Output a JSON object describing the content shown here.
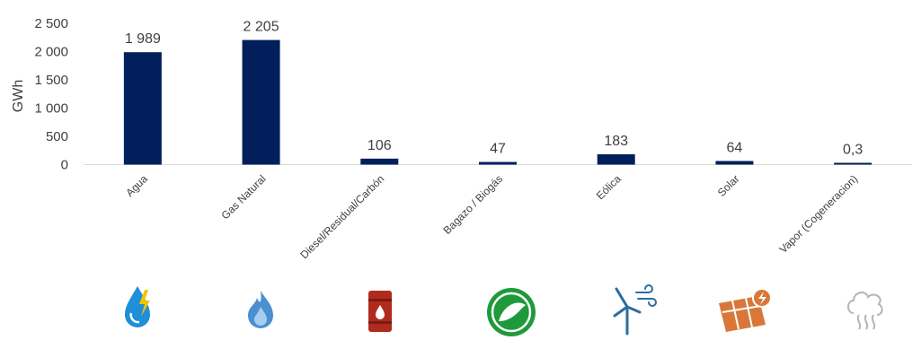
{
  "chart_data": {
    "type": "bar",
    "ylabel": "GWh",
    "ylim": [
      0,
      2500
    ],
    "yticks": [
      0,
      500,
      1000,
      1500,
      2000,
      2500
    ],
    "ytick_labels": [
      "0",
      "500",
      "1 000",
      "1 500",
      "2 000",
      "2 500"
    ],
    "categories": [
      "Agua",
      "Gas Natural",
      "Diesel/Residual/Carbón",
      "Bagazo / Biogás",
      "Eólica",
      "Solar",
      "Vapor (Cogeneracion)"
    ],
    "values": [
      1989,
      2205,
      106,
      47,
      183,
      64,
      0.3
    ],
    "data_labels": [
      "1 989",
      "2 205",
      "106",
      "47",
      "183",
      "64",
      "0,3"
    ],
    "bar_color": "#001f5b",
    "grid": false,
    "legend": "none"
  },
  "icons": [
    "water-energy-icon",
    "gas-flame-icon",
    "oil-barrel-icon",
    "biogas-icon",
    "wind-turbine-icon",
    "solar-panel-icon",
    "steam-icon"
  ],
  "icon_colors": {
    "water": "#1e8fd8",
    "bolt": "#f2c400",
    "gas": "#4a8fd0",
    "barrel": "#b02a1e",
    "biogas": "#1f9a3b",
    "wind": "#2c6d9e",
    "solar": "#d9773a",
    "steam": "#b5b5b5"
  }
}
